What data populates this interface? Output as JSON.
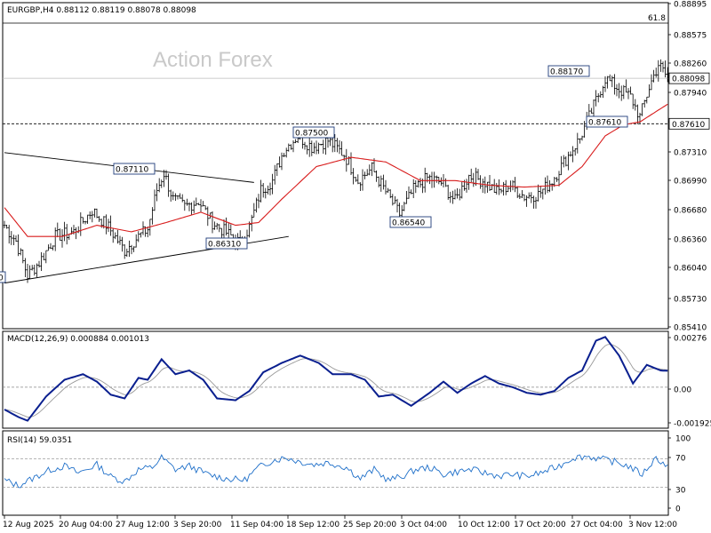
{
  "chart_data": {
    "type": "candlestick",
    "symbol_header": "EURGBP,H4  0.88112 0.88119 0.88078 0.88098",
    "watermark": "Action Forex",
    "fib_label": "61.8",
    "current_price_label": "0.88098",
    "support_label": "0.87610",
    "price_axis": {
      "ylim": [
        0.8541,
        0.8891
      ],
      "ticks": [
        "0.88895",
        "0.88575",
        "0.88260",
        "0.87940",
        "0.87610",
        "0.87310",
        "0.86990",
        "0.86680",
        "0.86360",
        "0.86040",
        "0.85730",
        "0.85410"
      ]
    },
    "time_labels": [
      "12 Aug 2025",
      "20 Aug 04:00",
      "27 Aug 12:00",
      "3 Sep 20:00",
      "11 Sep 04:00",
      "18 Sep 12:00",
      "25 Sep 20:00",
      "3 Oct 04:00",
      "10 Oct 12:00",
      "17 Oct 20:00",
      "27 Oct 04:00",
      "3 Nov 12:00"
    ],
    "annotations": [
      {
        "text": "0.87110",
        "value": 0.8711
      },
      {
        "text": "0.86310",
        "value": 0.8631
      },
      {
        "text": "0.87500",
        "value": 0.875
      },
      {
        "text": "0.86540",
        "value": 0.8654
      },
      {
        "text": "0.88170",
        "value": 0.8817
      },
      {
        "text": "0.87610",
        "value": 0.8761
      },
      {
        "text": "0",
        "value": 0.859
      }
    ],
    "close_anchors": [
      [
        0,
        0.8652
      ],
      [
        5,
        0.8635
      ],
      [
        10,
        0.8598
      ],
      [
        15,
        0.8612
      ],
      [
        22,
        0.864
      ],
      [
        30,
        0.8645
      ],
      [
        38,
        0.8668
      ],
      [
        45,
        0.865
      ],
      [
        52,
        0.8625
      ],
      [
        58,
        0.864
      ],
      [
        62,
        0.8648
      ],
      [
        66,
        0.869
      ],
      [
        69,
        0.8708
      ],
      [
        73,
        0.868
      ],
      [
        78,
        0.8672
      ],
      [
        84,
        0.8678
      ],
      [
        90,
        0.8655
      ],
      [
        96,
        0.8644
      ],
      [
        102,
        0.8633
      ],
      [
        106,
        0.865
      ],
      [
        111,
        0.869
      ],
      [
        116,
        0.87
      ],
      [
        121,
        0.8733
      ],
      [
        127,
        0.8748
      ],
      [
        133,
        0.8736
      ],
      [
        140,
        0.8743
      ],
      [
        147,
        0.8728
      ],
      [
        153,
        0.87
      ],
      [
        159,
        0.8713
      ],
      [
        165,
        0.8688
      ],
      [
        171,
        0.8664
      ],
      [
        177,
        0.869
      ],
      [
        183,
        0.8703
      ],
      [
        189,
        0.8698
      ],
      [
        195,
        0.8678
      ],
      [
        201,
        0.8705
      ],
      [
        207,
        0.87
      ],
      [
        213,
        0.8688
      ],
      [
        219,
        0.8695
      ],
      [
        225,
        0.8683
      ],
      [
        231,
        0.8685
      ],
      [
        237,
        0.87
      ],
      [
        243,
        0.8723
      ],
      [
        249,
        0.8745
      ],
      [
        255,
        0.878
      ],
      [
        260,
        0.881
      ],
      [
        266,
        0.8798
      ],
      [
        271,
        0.879
      ],
      [
        275,
        0.8768
      ],
      [
        279,
        0.88
      ],
      [
        283,
        0.8825
      ],
      [
        287,
        0.881
      ]
    ],
    "ma_anchors": [
      [
        0,
        0.8671
      ],
      [
        10,
        0.864
      ],
      [
        25,
        0.864
      ],
      [
        40,
        0.8652
      ],
      [
        55,
        0.8645
      ],
      [
        70,
        0.8655
      ],
      [
        85,
        0.8666
      ],
      [
        100,
        0.8652
      ],
      [
        110,
        0.8655
      ],
      [
        120,
        0.868
      ],
      [
        135,
        0.8715
      ],
      [
        150,
        0.8725
      ],
      [
        165,
        0.872
      ],
      [
        180,
        0.87
      ],
      [
        195,
        0.87
      ],
      [
        210,
        0.8695
      ],
      [
        225,
        0.8693
      ],
      [
        240,
        0.8695
      ],
      [
        250,
        0.8715
      ],
      [
        260,
        0.8748
      ],
      [
        268,
        0.876
      ],
      [
        275,
        0.8763
      ],
      [
        287,
        0.8782
      ]
    ],
    "trendlines": [
      {
        "from": [
          0,
          0.873
        ],
        "to": [
          108,
          0.8698
        ]
      },
      {
        "from": [
          0,
          0.859
        ],
        "to": [
          123,
          0.864
        ]
      }
    ],
    "macd": {
      "label": "MACD(12,26,9) 0.000884 0.001013",
      "ylim": [
        -0.0022,
        0.003
      ],
      "ticks": [
        "0.00276",
        "0.00",
        "-0.001925"
      ],
      "anchors": [
        [
          0,
          -0.0012
        ],
        [
          6,
          -0.0016
        ],
        [
          10,
          -0.0018
        ],
        [
          18,
          -0.0005
        ],
        [
          26,
          0.0004
        ],
        [
          34,
          0.0007
        ],
        [
          40,
          0.0003
        ],
        [
          46,
          -0.0004
        ],
        [
          52,
          -0.0006
        ],
        [
          58,
          0.0005
        ],
        [
          62,
          0.0004
        ],
        [
          68,
          0.0015
        ],
        [
          74,
          0.0007
        ],
        [
          80,
          0.0009
        ],
        [
          86,
          0.0004
        ],
        [
          92,
          -0.0006
        ],
        [
          100,
          -0.0007
        ],
        [
          106,
          -0.0002
        ],
        [
          112,
          0.0008
        ],
        [
          120,
          0.0013
        ],
        [
          128,
          0.0017
        ],
        [
          136,
          0.0013
        ],
        [
          142,
          0.0007
        ],
        [
          150,
          0.0007
        ],
        [
          156,
          0.0004
        ],
        [
          162,
          -0.0005
        ],
        [
          168,
          -0.0004
        ],
        [
          176,
          -0.001
        ],
        [
          184,
          -0.0003
        ],
        [
          190,
          0.0003
        ],
        [
          196,
          -0.0003
        ],
        [
          202,
          0.0002
        ],
        [
          208,
          0.0006
        ],
        [
          214,
          0.0002
        ],
        [
          220,
          0.0
        ],
        [
          226,
          -0.0003
        ],
        [
          232,
          -0.0004
        ],
        [
          238,
          -0.0002
        ],
        [
          244,
          0.0005
        ],
        [
          250,
          0.0009
        ],
        [
          256,
          0.0025
        ],
        [
          260,
          0.0027
        ],
        [
          266,
          0.0017
        ],
        [
          272,
          0.0002
        ],
        [
          278,
          0.0012
        ],
        [
          284,
          0.0009
        ],
        [
          287,
          0.00088
        ]
      ]
    },
    "rsi": {
      "label": "RSI(14) 59.0351",
      "ylim": [
        0,
        100
      ],
      "ticks": [
        "100",
        "70",
        "30",
        "0"
      ],
      "levels": [
        70,
        30
      ],
      "anchors": [
        [
          0,
          40
        ],
        [
          6,
          32
        ],
        [
          12,
          42
        ],
        [
          20,
          55
        ],
        [
          26,
          60
        ],
        [
          32,
          50
        ],
        [
          40,
          62
        ],
        [
          46,
          45
        ],
        [
          52,
          38
        ],
        [
          58,
          55
        ],
        [
          64,
          58
        ],
        [
          68,
          72
        ],
        [
          74,
          55
        ],
        [
          80,
          60
        ],
        [
          88,
          48
        ],
        [
          96,
          42
        ],
        [
          104,
          40
        ],
        [
          110,
          58
        ],
        [
          116,
          68
        ],
        [
          122,
          72
        ],
        [
          128,
          66
        ],
        [
          134,
          62
        ],
        [
          140,
          65
        ],
        [
          148,
          58
        ],
        [
          154,
          42
        ],
        [
          160,
          55
        ],
        [
          166,
          40
        ],
        [
          172,
          45
        ],
        [
          178,
          55
        ],
        [
          184,
          58
        ],
        [
          190,
          48
        ],
        [
          196,
          52
        ],
        [
          202,
          55
        ],
        [
          208,
          50
        ],
        [
          214,
          46
        ],
        [
          220,
          48
        ],
        [
          226,
          45
        ],
        [
          232,
          50
        ],
        [
          240,
          60
        ],
        [
          246,
          72
        ],
        [
          252,
          74
        ],
        [
          258,
          70
        ],
        [
          264,
          66
        ],
        [
          270,
          60
        ],
        [
          276,
          48
        ],
        [
          282,
          72
        ],
        [
          287,
          59
        ]
      ]
    }
  }
}
